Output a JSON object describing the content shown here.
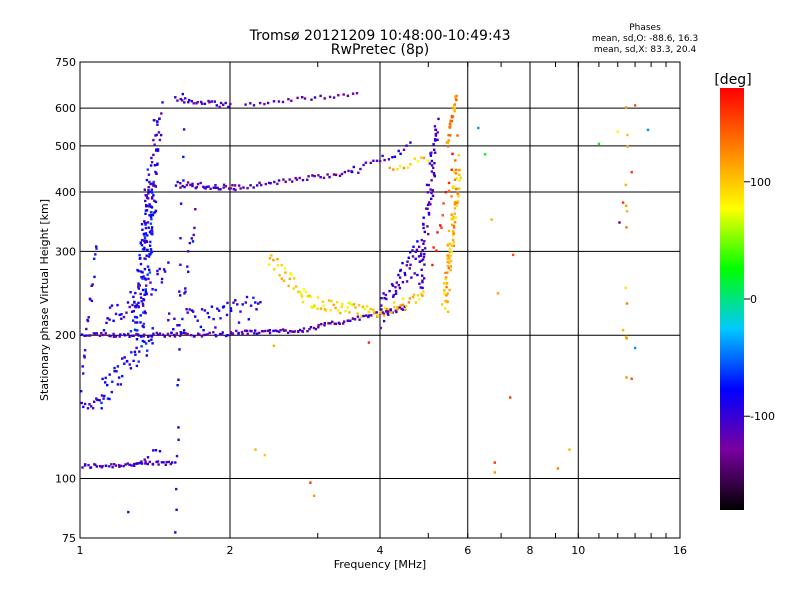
{
  "chart_data": {
    "type": "scatter",
    "title": "Tromsø 20121209 10:48:00-10:49:43",
    "subtitle": "RwPretec (8p)",
    "xlabel": "Frequency [MHz]",
    "ylabel": "Stationary phase Virtual Height [km]",
    "x_scale": "log",
    "y_scale": "log",
    "xlim": [
      1,
      16
    ],
    "ylim": [
      75,
      750
    ],
    "x_ticks": [
      1,
      2,
      4,
      6,
      8,
      10,
      16
    ],
    "x_tick_labels": [
      "1",
      "2",
      "4",
      "6",
      "8",
      "10",
      "16"
    ],
    "y_ticks": [
      75,
      100,
      200,
      300,
      400,
      500,
      600,
      750
    ],
    "y_tick_labels": [
      "75",
      "100",
      "200",
      "300",
      "400",
      "500",
      "600",
      "750"
    ],
    "grid": true,
    "stats": {
      "heading": "Phases",
      "line_o": "mean, sd,O: -88.6, 16.3",
      "line_x": "mean, sd,X: 83.3, 20.4"
    },
    "colorbar": {
      "label": "[deg]",
      "range": [
        -180,
        180
      ],
      "ticks": [
        100,
        0,
        -100
      ],
      "tick_labels": [
        "100",
        "0",
        "-100"
      ],
      "colormap": [
        "#000000",
        "#7a00a0",
        "#0000ff",
        "#00c8ff",
        "#00ff00",
        "#ffff00",
        "#ff8000",
        "#ff0000"
      ]
    },
    "traces": [
      {
        "x0": 1.01,
        "x1": 1.55,
        "y0": 106,
        "y1": 108,
        "phase": -108,
        "n": 50,
        "yjit": 0.012
      },
      {
        "x0": 1.28,
        "x1": 1.45,
        "y0": 108,
        "y1": 116,
        "phase": -100,
        "n": 8,
        "yjit": 0.02
      },
      {
        "x0": 1.01,
        "x1": 1.12,
        "y0": 140,
        "y1": 150,
        "phase": -100,
        "n": 14,
        "yjit": 0.03
      },
      {
        "x0": 1.1,
        "x1": 1.4,
        "y0": 150,
        "y1": 200,
        "phase": -85,
        "n": 45,
        "yjit": 0.07
      },
      {
        "x0": 1.01,
        "x1": 1.08,
        "y0": 160,
        "y1": 320,
        "phase": -90,
        "n": 20,
        "yjit": 0.05
      },
      {
        "x0": 1.3,
        "x1": 1.4,
        "y0": 200,
        "y1": 430,
        "phase": -80,
        "n": 130,
        "yjit": 0.06,
        "xjit": 0.03
      },
      {
        "x0": 1.36,
        "x1": 1.44,
        "y0": 300,
        "y1": 600,
        "phase": -100,
        "n": 60,
        "yjit": 0.04,
        "xjit": 0.02
      },
      {
        "x0": 1.12,
        "x1": 1.5,
        "y0": 210,
        "y1": 270,
        "phase": -95,
        "n": 40,
        "yjit": 0.07
      },
      {
        "x0": 1.0,
        "x1": 2.0,
        "y0": 200,
        "y1": 201,
        "phase": -108,
        "n": 70,
        "yjit": 0.01
      },
      {
        "x0": 1.5,
        "x1": 2.3,
        "y0": 210,
        "y1": 230,
        "phase": -90,
        "n": 50,
        "yjit": 0.06
      },
      {
        "x0": 1.56,
        "x1": 2.05,
        "y0": 415,
        "y1": 408,
        "phase": -110,
        "n": 35,
        "yjit": 0.015
      },
      {
        "x0": 2.05,
        "x1": 3.5,
        "y0": 408,
        "y1": 440,
        "phase": -115,
        "n": 40,
        "yjit": 0.01
      },
      {
        "x0": 3.5,
        "x1": 4.6,
        "y0": 440,
        "y1": 500,
        "phase": -100,
        "n": 20,
        "yjit": 0.02
      },
      {
        "x0": 1.56,
        "x1": 2.0,
        "y0": 625,
        "y1": 607,
        "phase": -105,
        "n": 25,
        "yjit": 0.012
      },
      {
        "x0": 2.15,
        "x1": 3.6,
        "y0": 610,
        "y1": 645,
        "phase": -118,
        "n": 25,
        "yjit": 0.01
      },
      {
        "x0": 2.0,
        "x1": 2.8,
        "y0": 202,
        "y1": 205,
        "phase": -110,
        "n": 40,
        "yjit": 0.01
      },
      {
        "x0": 2.8,
        "x1": 4.5,
        "y0": 205,
        "y1": 228,
        "phase": -120,
        "n": 50,
        "yjit": 0.01
      },
      {
        "x0": 2.4,
        "x1": 2.9,
        "y0": 290,
        "y1": 235,
        "phase": 95,
        "n": 30,
        "yjit": 0.04
      },
      {
        "x0": 2.9,
        "x1": 3.9,
        "y0": 235,
        "y1": 222,
        "phase": 90,
        "n": 40,
        "yjit": 0.03
      },
      {
        "x0": 3.9,
        "x1": 4.9,
        "y0": 222,
        "y1": 240,
        "phase": 100,
        "n": 30,
        "yjit": 0.03
      },
      {
        "x0": 4.0,
        "x1": 4.8,
        "y0": 220,
        "y1": 300,
        "phase": -100,
        "n": 50,
        "yjit": 0.08
      },
      {
        "x0": 4.8,
        "x1": 5.2,
        "y0": 250,
        "y1": 560,
        "phase": -105,
        "n": 70,
        "yjit": 0.05,
        "xjit": 0.015
      },
      {
        "x0": 5.4,
        "x1": 5.75,
        "y0": 230,
        "y1": 460,
        "phase": 110,
        "n": 90,
        "yjit": 0.04,
        "xjit": 0.015
      },
      {
        "x0": 5.45,
        "x1": 5.7,
        "y0": 500,
        "y1": 640,
        "phase": 125,
        "n": 25,
        "yjit": 0.02
      },
      {
        "x0": 4.2,
        "x1": 5.0,
        "y0": 450,
        "y1": 470,
        "phase": 100,
        "n": 12,
        "yjit": 0.02
      },
      {
        "x0": 5.1,
        "x1": 5.7,
        "y0": 280,
        "y1": 500,
        "phase": 160,
        "n": 15,
        "yjit": 0.05
      },
      {
        "x0": 1.56,
        "x1": 1.62,
        "y0": 80,
        "y1": 700,
        "phase": -95,
        "n": 18,
        "yjit": 0.12
      },
      {
        "x0": 1.62,
        "x1": 1.7,
        "y0": 240,
        "y1": 360,
        "phase": -95,
        "n": 12,
        "yjit": 0.06
      },
      {
        "x0": 12.5,
        "x1": 12.5,
        "y0": 170,
        "y1": 640,
        "phase": 110,
        "n": 12,
        "yjit": 0.1
      }
    ],
    "points": [
      {
        "x": 1.25,
        "y": 85,
        "phase": -100
      },
      {
        "x": 1.56,
        "y": 95,
        "phase": -100
      },
      {
        "x": 2.25,
        "y": 115,
        "phase": 110
      },
      {
        "x": 2.35,
        "y": 112,
        "phase": 100
      },
      {
        "x": 2.9,
        "y": 98,
        "phase": 160
      },
      {
        "x": 2.95,
        "y": 92,
        "phase": 120
      },
      {
        "x": 2.45,
        "y": 190,
        "phase": 110
      },
      {
        "x": 3.8,
        "y": 193,
        "phase": 165
      },
      {
        "x": 6.8,
        "y": 108,
        "phase": 160
      },
      {
        "x": 6.8,
        "y": 103,
        "phase": 120
      },
      {
        "x": 7.3,
        "y": 148,
        "phase": 160
      },
      {
        "x": 7.4,
        "y": 295,
        "phase": 150
      },
      {
        "x": 6.9,
        "y": 245,
        "phase": 115
      },
      {
        "x": 6.7,
        "y": 350,
        "phase": 110
      },
      {
        "x": 6.5,
        "y": 480,
        "phase": 20
      },
      {
        "x": 6.3,
        "y": 545,
        "phase": -40
      },
      {
        "x": 9.6,
        "y": 115,
        "phase": 110
      },
      {
        "x": 9.1,
        "y": 105,
        "phase": 130
      },
      {
        "x": 11.0,
        "y": 505,
        "phase": 20
      },
      {
        "x": 12.0,
        "y": 535,
        "phase": 80
      },
      {
        "x": 12.3,
        "y": 205,
        "phase": 110
      },
      {
        "x": 12.8,
        "y": 440,
        "phase": 160
      },
      {
        "x": 13.0,
        "y": 188,
        "phase": -40
      },
      {
        "x": 12.8,
        "y": 162,
        "phase": 150
      },
      {
        "x": 13.0,
        "y": 608,
        "phase": 150
      },
      {
        "x": 13.8,
        "y": 540,
        "phase": -40
      },
      {
        "x": 12.1,
        "y": 345,
        "phase": -140
      },
      {
        "x": 12.3,
        "y": 380,
        "phase": 160
      }
    ]
  }
}
